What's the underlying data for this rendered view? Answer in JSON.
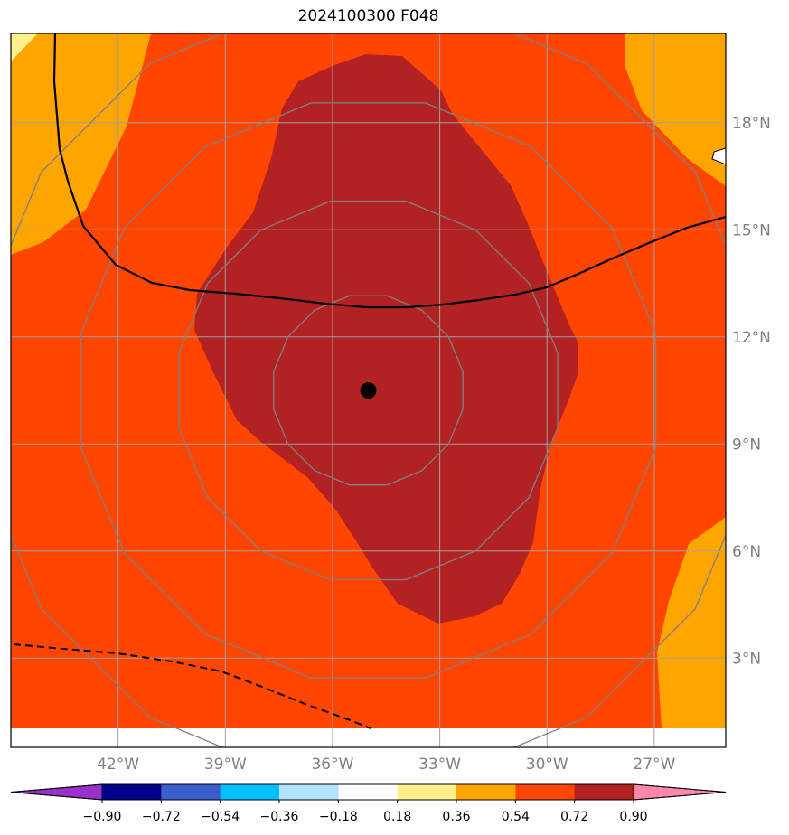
{
  "title": "2024100300 F048",
  "map": {
    "lon_range": [
      -45,
      -25
    ],
    "lat_range": [
      0.5,
      20.5
    ],
    "lon_ticks": [
      {
        "value": -42,
        "label": "42°W"
      },
      {
        "value": -39,
        "label": "39°W"
      },
      {
        "value": -36,
        "label": "36°W"
      },
      {
        "value": -33,
        "label": "33°W"
      },
      {
        "value": -30,
        "label": "30°W"
      },
      {
        "value": -27,
        "label": "27°W"
      }
    ],
    "lat_ticks": [
      {
        "value": 18,
        "label": "18°N"
      },
      {
        "value": 15,
        "label": "15°N"
      },
      {
        "value": 12,
        "label": "12°N"
      },
      {
        "value": 9,
        "label": "9°N"
      },
      {
        "value": 6,
        "label": "6°N"
      },
      {
        "value": 3,
        "label": "3°N"
      }
    ],
    "center_marker": {
      "lon": -35,
      "lat": 10.5
    },
    "range_rings_deg": [
      2.7,
      5.4,
      8.2,
      11.0
    ],
    "colors": {
      "background_fill": "#ff4500",
      "high_fill": "#b22222",
      "moderate_fill": "#ffa500",
      "low_fill": "#fff08c",
      "ring": "#808080",
      "grid": "#a0a0a0",
      "contour": "#000000"
    }
  },
  "colorbar": {
    "boundaries": [
      -0.9,
      -0.72,
      -0.54,
      -0.36,
      -0.18,
      0.18,
      0.36,
      0.54,
      0.72,
      0.9
    ],
    "tick_labels": [
      "−0.90",
      "−0.72",
      "−0.54",
      "−0.36",
      "−0.18",
      "0.18",
      "0.36",
      "0.54",
      "0.72",
      "0.90"
    ],
    "colors": [
      "#9932cc",
      "#00008b",
      "#3a5fcd",
      "#00bfff",
      "#b0e2ff",
      "#ffffff",
      "#fff08c",
      "#ffa500",
      "#ff4500",
      "#b22222",
      "#ff88aa"
    ]
  }
}
